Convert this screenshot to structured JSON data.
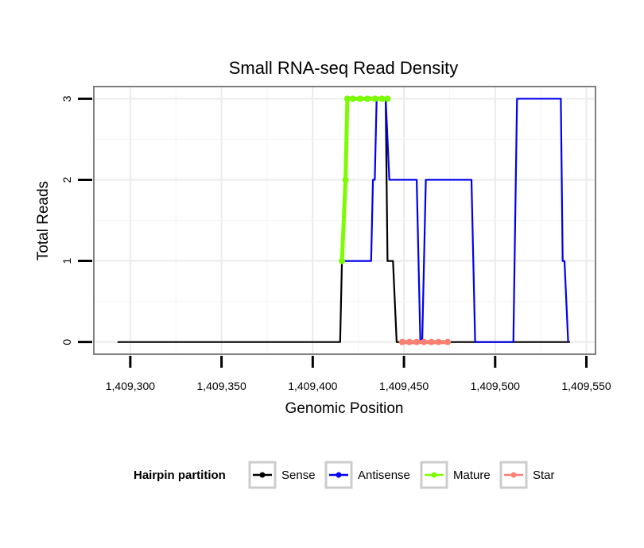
{
  "chart_data": {
    "type": "line",
    "title": "Small RNA-seq Read Density",
    "xlabel": "Genomic Position",
    "ylabel": "Total Reads",
    "xlim": [
      1409280,
      1409555
    ],
    "ylim": [
      -0.15,
      3.15
    ],
    "x_ticks": [
      1409300,
      1409350,
      1409400,
      1409450,
      1409500,
      1409550
    ],
    "x_tick_labels": [
      "1,409,300",
      "1,409,350",
      "1,409,400",
      "1,409,450",
      "1,409,500",
      "1,409,550"
    ],
    "y_ticks": [
      0,
      1,
      2,
      3
    ],
    "y_tick_labels": [
      "0",
      "1",
      "2",
      "3"
    ],
    "grid": true,
    "legend": {
      "title": "Hairpin partition",
      "position": "bottom",
      "entries": [
        {
          "name": "Sense",
          "color": "#000000"
        },
        {
          "name": "Antisense",
          "color": "#0000ee"
        },
        {
          "name": "Mature",
          "color": "#7cfc00"
        },
        {
          "name": "Star",
          "color": "#fa8072"
        }
      ]
    },
    "series": [
      {
        "name": "Sense",
        "color": "#000000",
        "markers": false,
        "x": [
          1409293,
          1409415,
          1409416,
          1409418,
          1409419,
          1409440,
          1409441,
          1409443,
          1409444,
          1409446,
          1409541
        ],
        "y": [
          0,
          0,
          1,
          2,
          3,
          3,
          1,
          1,
          1,
          0,
          0
        ]
      },
      {
        "name": "Antisense",
        "color": "#0000ee",
        "markers": false,
        "x": [
          1409417,
          1409432,
          1409433,
          1409434,
          1409435,
          1409436,
          1409440,
          1409442,
          1409457,
          1409459,
          1409460,
          1409462,
          1409487,
          1409489,
          1409510,
          1409512,
          1409536,
          1409537,
          1409538,
          1409540
        ],
        "y": [
          1,
          1,
          2,
          2,
          3,
          3,
          3,
          2,
          2,
          0,
          0,
          2,
          2,
          0,
          0,
          3,
          3,
          1,
          1,
          0
        ]
      },
      {
        "name": "Mature",
        "color": "#7cfc00",
        "markers": true,
        "x": [
          1409416,
          1409418,
          1409419,
          1409422,
          1409426,
          1409430,
          1409434,
          1409438,
          1409441
        ],
        "y": [
          1,
          2,
          3,
          3,
          3,
          3,
          3,
          3,
          3
        ]
      },
      {
        "name": "Star",
        "color": "#fa8072",
        "markers": true,
        "x": [
          1409449,
          1409453,
          1409457,
          1409461,
          1409465,
          1409469,
          1409474
        ],
        "y": [
          0,
          0,
          0,
          0,
          0,
          0,
          0
        ]
      }
    ]
  }
}
